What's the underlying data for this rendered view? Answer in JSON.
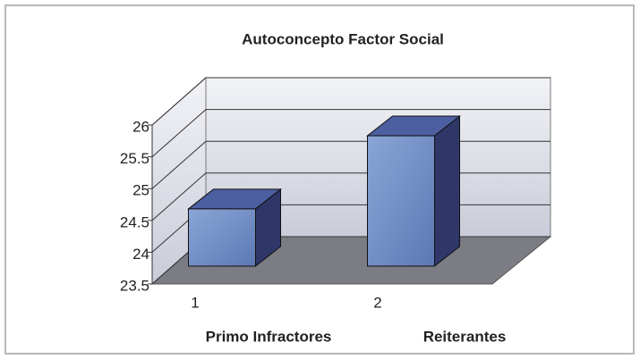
{
  "chart_data": {
    "type": "bar3d",
    "title": "Autoconcepto Factor Social",
    "categories": [
      "1",
      "2"
    ],
    "category_names": [
      "Primo Infractores",
      "Reiterantes"
    ],
    "values": [
      24.4,
      25.55
    ],
    "color": "#6f8fc8",
    "ylim": [
      23.5,
      26
    ],
    "yticks": [
      23.5,
      24,
      24.5,
      25,
      25.5,
      26
    ],
    "grid": true
  }
}
